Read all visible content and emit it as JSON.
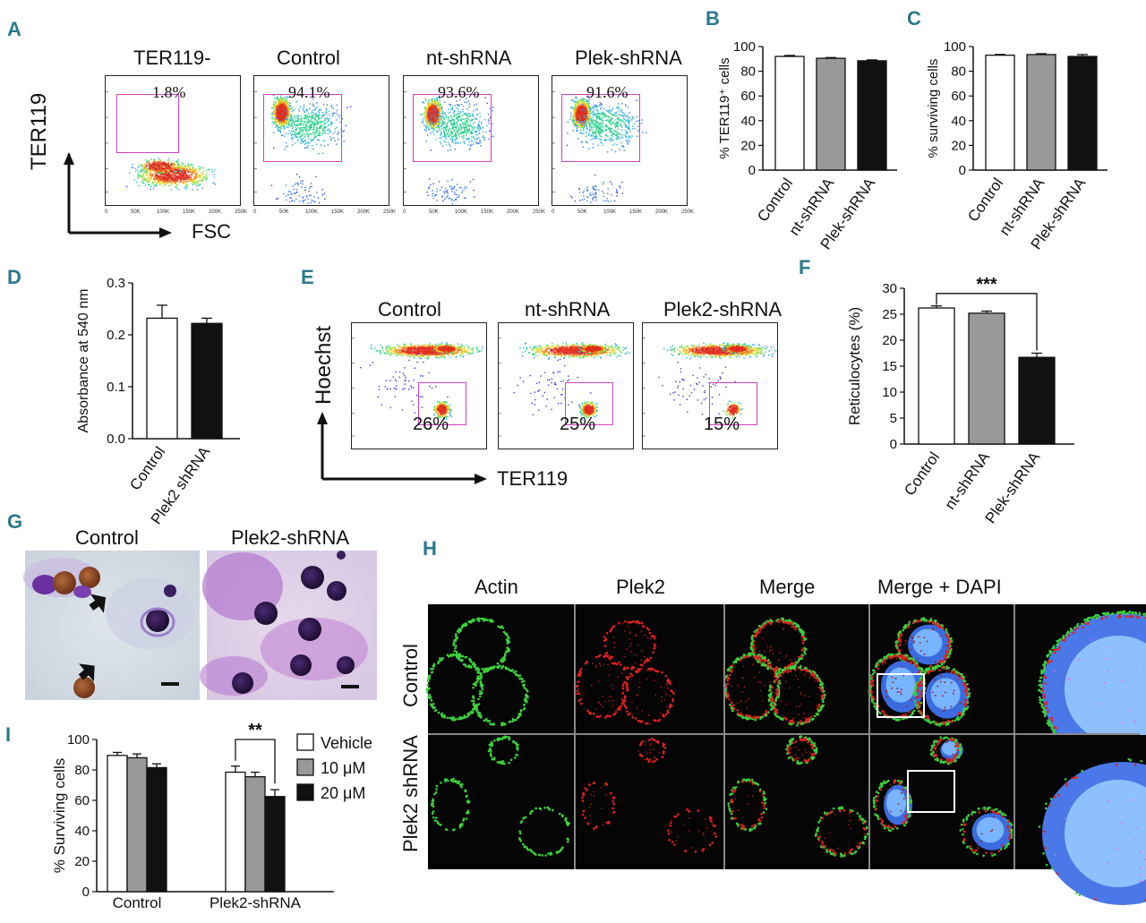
{
  "panels": {
    "A": {
      "label": "A",
      "ylabel": "TER119",
      "xlabel": "FSC",
      "plots": [
        {
          "title": "TER119-",
          "pct": "1.8%"
        },
        {
          "title": "Control",
          "pct": "94.1%"
        },
        {
          "title": "nt-shRNA",
          "pct": "93.6%"
        },
        {
          "title": "Plek-shRNA",
          "pct": "91.6%"
        }
      ]
    },
    "B": {
      "label": "B"
    },
    "C": {
      "label": "C"
    },
    "D": {
      "label": "D"
    },
    "E": {
      "label": "E",
      "ylabel": "Hoechst",
      "xlabel": "TER119",
      "plots": [
        {
          "title": "Control",
          "pct": "26%"
        },
        {
          "title": "nt-shRNA",
          "pct": "25%"
        },
        {
          "title": "Plek2-shRNA",
          "pct": "15%"
        }
      ]
    },
    "F": {
      "label": "F"
    },
    "G": {
      "label": "G",
      "titles": [
        "Control",
        "Plek2-shRNA"
      ]
    },
    "H": {
      "label": "H",
      "columns": [
        "Actin",
        "Plek2",
        "Merge",
        "Merge + DAPI"
      ],
      "rows": [
        "Control",
        "Plek2 shRNA"
      ]
    },
    "I": {
      "label": "I"
    }
  },
  "chart_data": [
    {
      "id": "B",
      "type": "bar",
      "categories": [
        "Control",
        "nt-shRNA",
        "Plek-shRNA"
      ],
      "values": [
        92,
        90.5,
        88.5
      ],
      "errors": [
        0.8,
        0.6,
        0.7
      ],
      "colors": [
        "#ffffff",
        "#999999",
        "#111111"
      ],
      "ylabel": "% TER119⁺ cells",
      "ylim": [
        0,
        100
      ],
      "yticks": [
        0,
        20,
        40,
        60,
        80,
        100
      ]
    },
    {
      "id": "C",
      "type": "bar",
      "categories": [
        "Control",
        "nt-shRNA",
        "Plek-shRNA"
      ],
      "values": [
        93,
        93.5,
        92
      ],
      "errors": [
        0.6,
        0.7,
        1.5
      ],
      "colors": [
        "#ffffff",
        "#999999",
        "#111111"
      ],
      "ylabel": "% surviving cells",
      "ylim": [
        0,
        100
      ],
      "yticks": [
        0,
        20,
        40,
        60,
        80,
        100
      ]
    },
    {
      "id": "D",
      "type": "bar",
      "categories": [
        "Control",
        "Plek2 shRNA"
      ],
      "values": [
        0.232,
        0.222
      ],
      "errors": [
        0.025,
        0.01
      ],
      "colors": [
        "#ffffff",
        "#111111"
      ],
      "ylabel": "Absorbance at 540 nm",
      "ylim": [
        0,
        0.3
      ],
      "yticks": [
        "0.0",
        "0.1",
        "0.2",
        "0.3"
      ]
    },
    {
      "id": "F",
      "type": "bar",
      "categories": [
        "Control",
        "nt-shRNA",
        "Plek-shRNA"
      ],
      "values": [
        26.2,
        25.2,
        16.7
      ],
      "errors": [
        0.4,
        0.4,
        0.8
      ],
      "colors": [
        "#ffffff",
        "#999999",
        "#111111"
      ],
      "ylabel": "Reticulocytes (%)",
      "ylim": [
        0,
        30
      ],
      "yticks": [
        0,
        5,
        10,
        15,
        20,
        25,
        30
      ],
      "annotation": "***"
    },
    {
      "id": "I",
      "type": "bar",
      "categories": [
        "Control",
        "Plek2-shRNA"
      ],
      "series": [
        {
          "name": "Vehicle",
          "values": [
            89.5,
            78.5
          ],
          "errors": [
            2,
            4
          ],
          "color": "#ffffff"
        },
        {
          "name": "10 μM",
          "values": [
            88,
            75.5
          ],
          "errors": [
            2.5,
            3
          ],
          "color": "#999999"
        },
        {
          "name": "20 μM",
          "values": [
            81.5,
            62.5
          ],
          "errors": [
            2.5,
            4.5
          ],
          "color": "#111111"
        }
      ],
      "ylabel": "% Surviving cells",
      "ylim": [
        0,
        100
      ],
      "yticks": [
        0,
        20,
        40,
        60,
        80,
        100
      ],
      "annotation": "**"
    }
  ]
}
